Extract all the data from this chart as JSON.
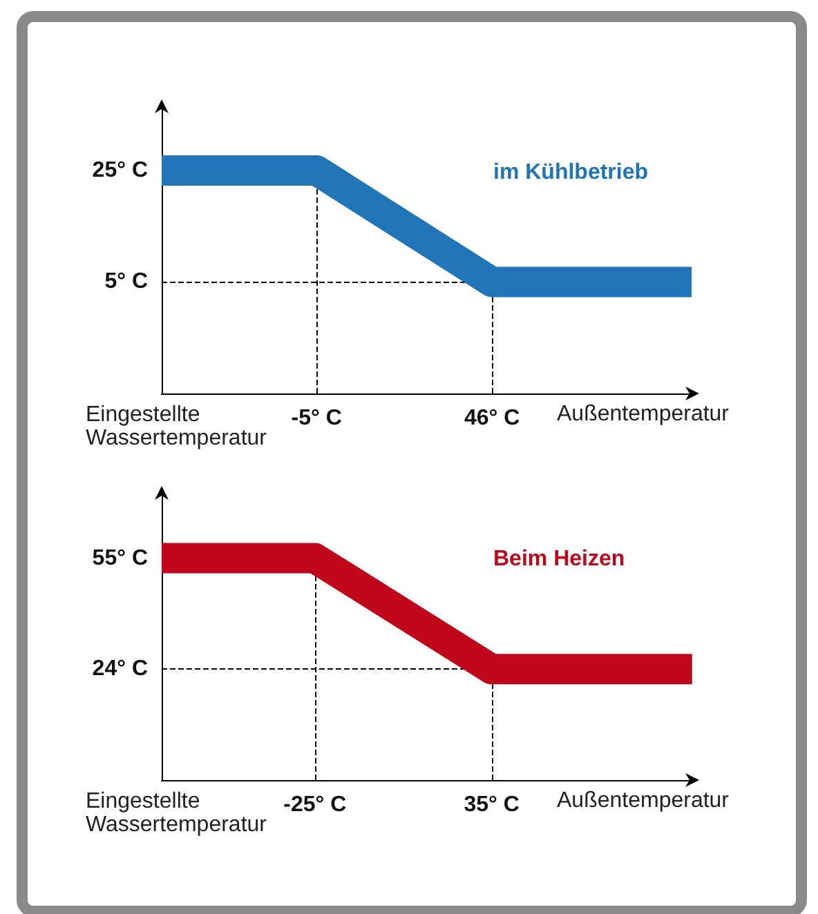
{
  "chart_data": [
    {
      "type": "line",
      "xlabel": "Außentemperatur",
      "ylabel": "Eingestellte Wassertemperatur",
      "xlim": [
        -50,
        105
      ],
      "ylim": [
        -15,
        37
      ],
      "xticks": [
        {
          "value": -5,
          "label": "-5° C"
        },
        {
          "value": 46,
          "label": "46° C"
        }
      ],
      "yticks": [
        {
          "value": 5,
          "label": "5° C"
        },
        {
          "value": 25,
          "label": "25° C"
        }
      ],
      "series": [
        {
          "name": "im Kühlbetrieb",
          "color": "#1f75b8",
          "x": [
            -50,
            -5,
            46,
            104
          ],
          "values": [
            25,
            25,
            5,
            5
          ]
        }
      ],
      "ref_lines": [
        {
          "axis": "x",
          "value": -5,
          "line_style": "dashed"
        },
        {
          "axis": "x",
          "value": 46,
          "line_style": "dashed"
        },
        {
          "axis": "y",
          "value": 5,
          "line_style": "dashed"
        }
      ],
      "grid": false,
      "legend": false,
      "marker": "none"
    },
    {
      "type": "line",
      "xlabel": "Außentemperatur",
      "ylabel": "Eingestellte Wassertemperatur",
      "xlim": [
        -77,
        104
      ],
      "ylim": [
        -7,
        74
      ],
      "xticks": [
        {
          "value": -25,
          "label": "-25° C"
        },
        {
          "value": 35,
          "label": "35° C"
        }
      ],
      "yticks": [
        {
          "value": 24,
          "label": "24° C"
        },
        {
          "value": 55,
          "label": "55° C"
        }
      ],
      "series": [
        {
          "name": "Beim Heizen",
          "color": "#c0061b",
          "x": [
            -77,
            -25,
            35,
            103
          ],
          "values": [
            55,
            55,
            24,
            24
          ]
        }
      ],
      "ref_lines": [
        {
          "axis": "x",
          "value": -25,
          "line_style": "dashed"
        },
        {
          "axis": "x",
          "value": 35,
          "line_style": "dashed"
        },
        {
          "axis": "y",
          "value": 24,
          "line_style": "dashed"
        }
      ],
      "grid": false,
      "legend": false,
      "marker": "none"
    }
  ]
}
